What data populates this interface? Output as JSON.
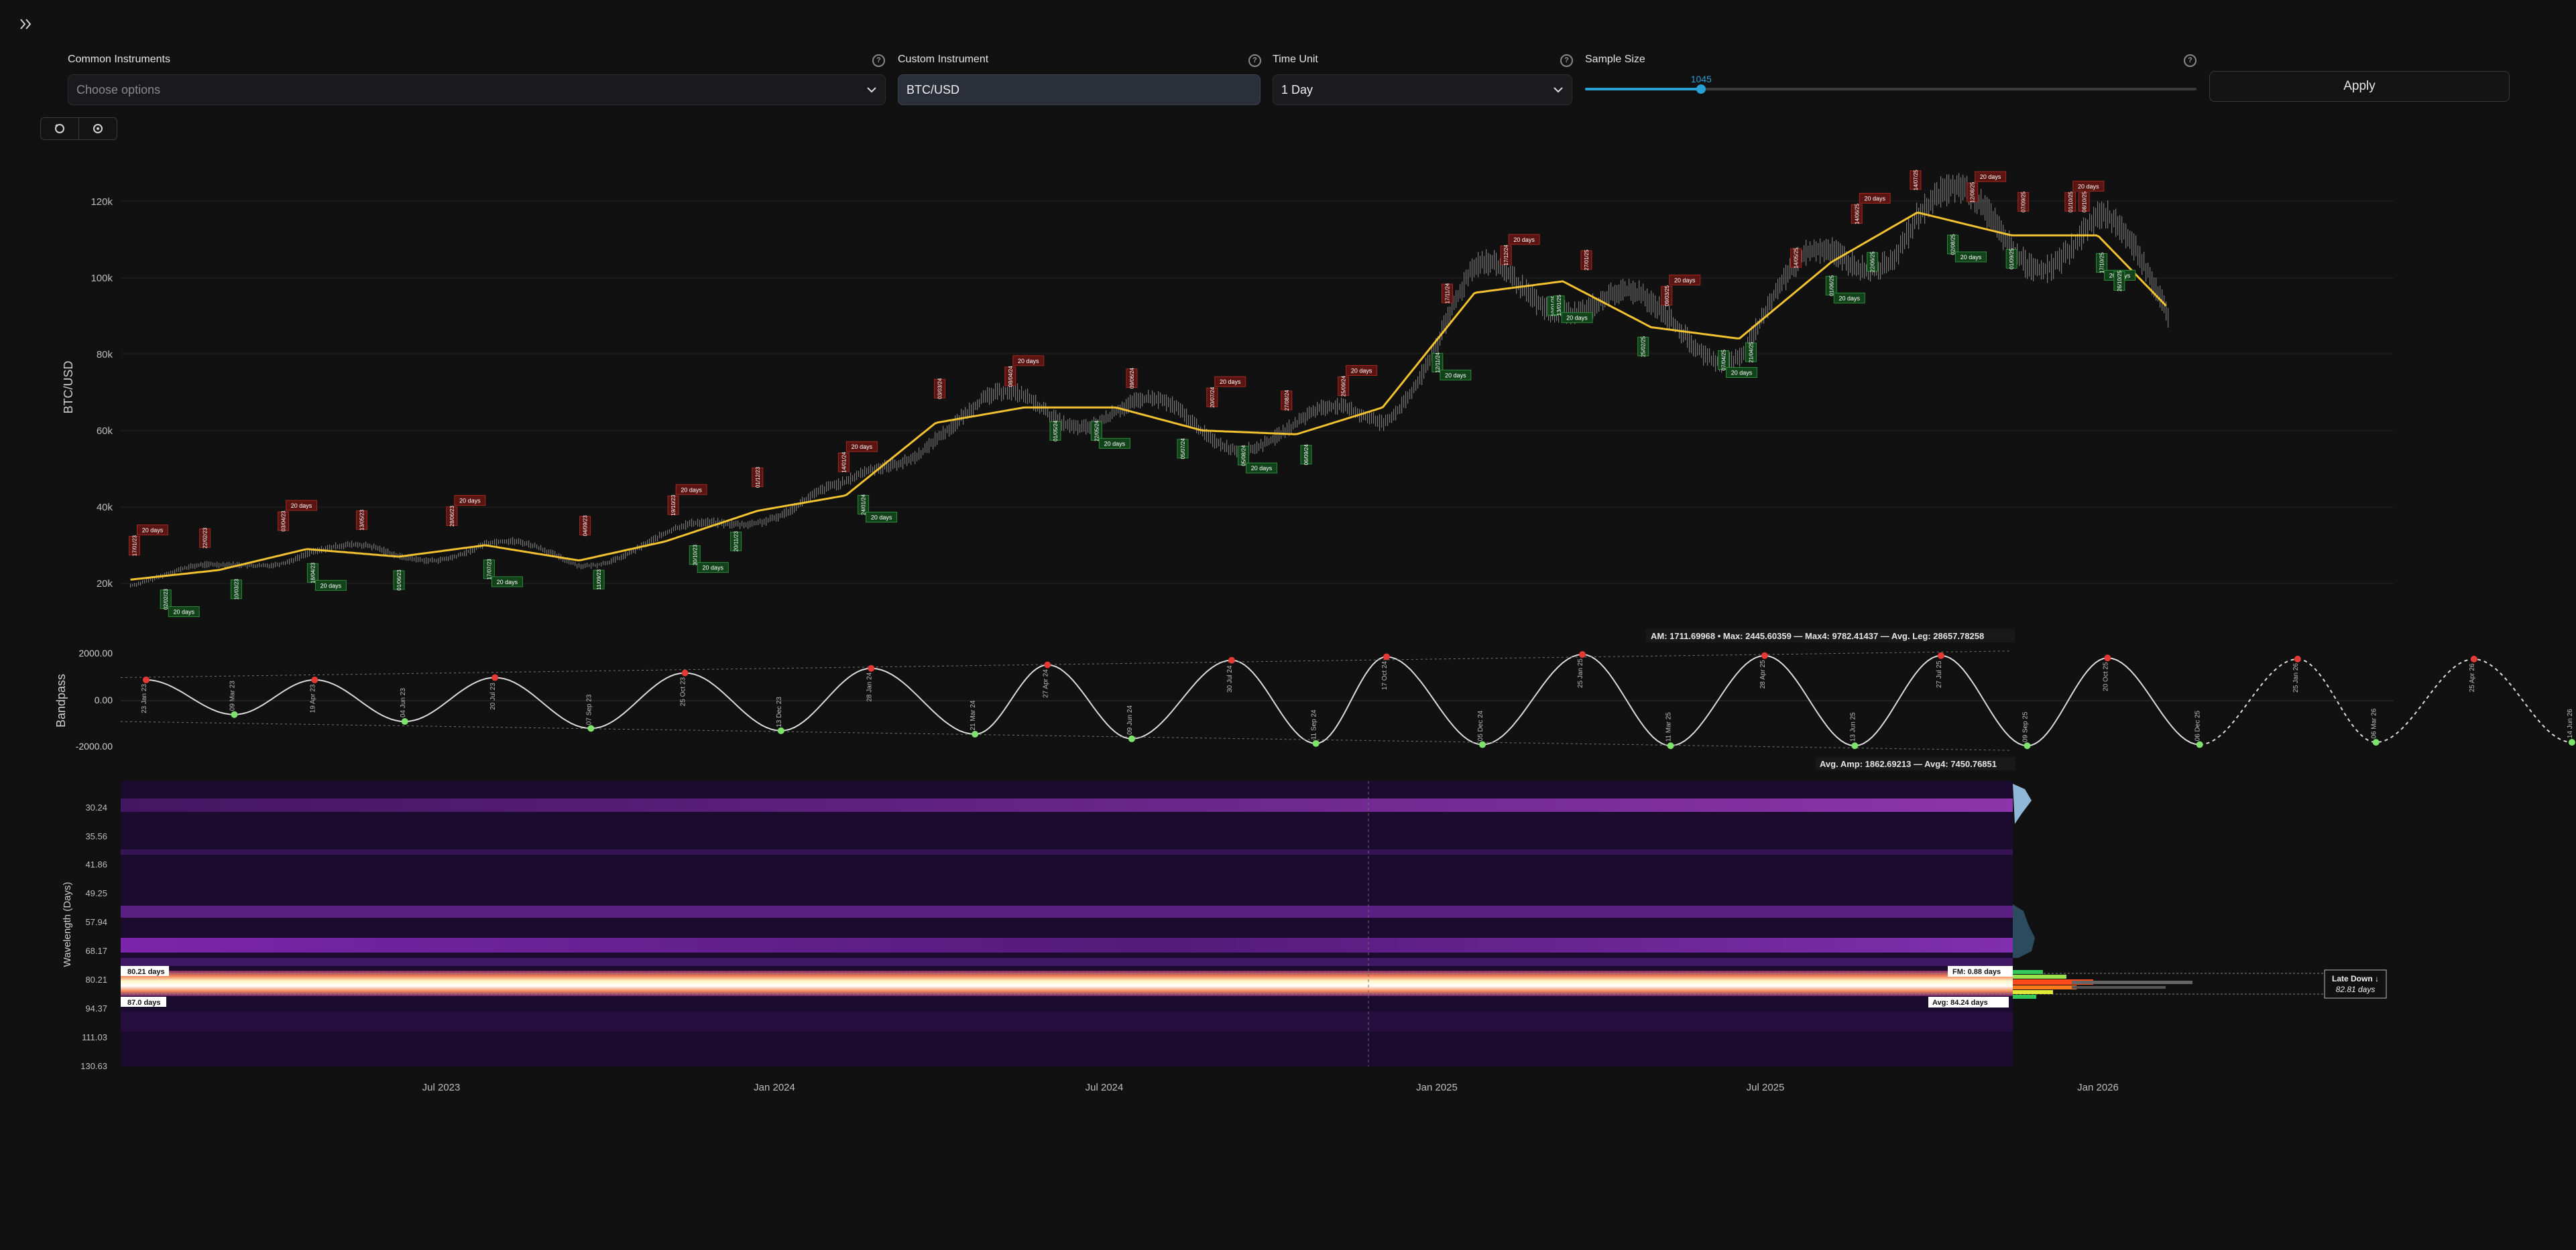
{
  "toolbar": {
    "common_label": "Common Instruments",
    "common_placeholder": "Choose options",
    "custom_label": "Custom Instrument",
    "custom_value": "BTC/USD",
    "time_label": "Time Unit",
    "time_value": "1 Day",
    "sample_label": "Sample Size",
    "sample_value": "1045",
    "sample_fraction": 0.19,
    "apply_label": "Apply",
    "help_glyph": "?"
  },
  "icons": {
    "expand": "double-chevron-right-icon",
    "refresh": "refresh-icon",
    "settings": "gear-icon"
  },
  "price_chart": {
    "ylabel": "BTC/USD",
    "yticks": [
      "120k",
      "100k",
      "80k",
      "60k",
      "40k",
      "20k"
    ],
    "cycle_label": "20 days",
    "top_markers": [
      "17/01/23",
      "22/02/23",
      "03/04/23",
      "13/05/23",
      "28/06/23",
      "04/09/23",
      "19/10/23",
      "01/12/23",
      "14/01/24",
      "03/03/24",
      "08/04/24",
      "09/06/24",
      "20/07/24",
      "27/08/24",
      "25/09/24",
      "17/11/24",
      "17/12/24",
      "27/01/25",
      "09/03/25",
      "14/05/25",
      "14/06/25",
      "14/07/25",
      "12/08/25",
      "07/09/25",
      "01/10/25",
      "08/10/25"
    ],
    "bottom_markers": [
      "02/02/23",
      "10/03/23",
      "18/04/23",
      "01/06/23",
      "17/07/23",
      "11/09/23",
      "30/10/23",
      "20/11/23",
      "24/01/24",
      "01/05/24",
      "22/05/24",
      "05/07/24",
      "05/08/24",
      "06/09/24",
      "12/11/24",
      "10/01/25",
      "13/01/25",
      "25/02/25",
      "07/04/25",
      "21/04/25",
      "01/06/25",
      "22/06/25",
      "02/08/25",
      "01/09/25",
      "17/10/25",
      "26/10/25"
    ]
  },
  "bandpass": {
    "ylabel": "Bandpass",
    "yticks": [
      "2000.00",
      "0.00",
      "-2000.00"
    ],
    "top_legend": "AM: 1711.69968  • Max: 2445.60359  — Max4: 9782.41437  — Avg. Leg: 28657.78258",
    "bottom_legend": "Avg. Amp: 1862.69213  — Avg4: 7450.76851",
    "peak_dates": [
      "23 Jan 23",
      "19 Apr 23",
      "20 Jul 23",
      "25 Oct 23",
      "28 Jan 24",
      "27 Apr 24",
      "30 Jul 24",
      "17 Oct 24",
      "25 Jan 25",
      "28 Apr 25",
      "27 Jul 25",
      "20 Oct 25",
      "25 Jan 26",
      "25 Apr 26"
    ],
    "trough_dates": [
      "09 Mar 23",
      "04 Jun 23",
      "07 Sep 23",
      "13 Dec 23",
      "21 Mar 24",
      "09 Jun 24",
      "11 Sep 24",
      "05 Dec 24",
      "11 Mar 25",
      "13 Jun 25",
      "09 Sep 25",
      "06 Dec 25",
      "06 Mar 26",
      "14 Jun 26"
    ]
  },
  "spectrogram": {
    "ylabel": "Wavelength (Days)",
    "yticks": [
      "30.24",
      "35.56",
      "41.86",
      "49.25",
      "57.94",
      "68.17",
      "80.21",
      "94.37",
      "111.03",
      "130.63"
    ],
    "marker_top": "80.21 days",
    "marker_bottom": "87.0 days",
    "fm_label": "FM: 0.88 days",
    "avg_label": "Avg: 84.24 days",
    "status_title": "Late Down ↓",
    "status_value": "82.81 days"
  },
  "xaxis": {
    "ticks": [
      "Jul 2023",
      "Jan 2024",
      "Jul 2024",
      "Jan 2025",
      "Jul 2025",
      "Jan 2026"
    ]
  },
  "colors": {
    "bg": "#111111",
    "accent": "#2a9fd6",
    "smooth_line": "#f2c230",
    "peak": "#e53935",
    "trough": "#7ee36b",
    "cycle_top": "#5a1512",
    "cycle_bottom": "#12421a"
  },
  "chart_data": [
    {
      "type": "line",
      "title": "",
      "ylabel": "BTC/USD",
      "ylim": [
        10000,
        130000
      ],
      "xlim": [
        "2023-01-10",
        "2026-03-15"
      ],
      "x": [
        "2023-01-15",
        "2023-03-01",
        "2023-04-15",
        "2023-06-01",
        "2023-07-15",
        "2023-09-01",
        "2023-10-15",
        "2023-12-01",
        "2024-01-15",
        "2024-03-01",
        "2024-04-15",
        "2024-06-01",
        "2024-07-15",
        "2024-09-01",
        "2024-10-15",
        "2024-12-01",
        "2025-01-15",
        "2025-03-01",
        "2025-04-15",
        "2025-06-01",
        "2025-07-15",
        "2025-09-01",
        "2025-10-15",
        "2025-11-20"
      ],
      "series": [
        {
          "values": [
            21000,
            23500,
            29000,
            27000,
            30000,
            26000,
            31000,
            39000,
            43000,
            62000,
            66000,
            66000,
            60000,
            59000,
            66000,
            96000,
            99000,
            87000,
            84000,
            104000,
            117000,
            111000,
            111000,
            92000
          ]
        }
      ]
    },
    {
      "type": "line",
      "title": "",
      "ylabel": "Bandpass",
      "ylim": [
        -2600,
        2600
      ],
      "x": [
        "2023-01-23",
        "2023-03-09",
        "2023-04-19",
        "2023-06-04",
        "2023-07-20",
        "2023-09-07",
        "2023-10-25",
        "2023-12-13",
        "2024-01-28",
        "2024-03-21",
        "2024-04-27",
        "2024-06-09",
        "2024-07-30",
        "2024-09-11",
        "2024-10-17",
        "2024-12-05",
        "2025-01-25",
        "2025-03-11",
        "2025-04-28",
        "2025-06-13",
        "2025-07-27",
        "2025-09-09",
        "2025-10-20",
        "2025-12-06",
        "2026-01-25",
        "2026-03-06",
        "2026-04-25",
        "2026-06-14"
      ],
      "series": [
        {
          "values": [
            900,
            -600,
            900,
            -900,
            1000,
            -1200,
            1200,
            -1300,
            1400,
            -1450,
            1550,
            -1650,
            1750,
            -1850,
            1900,
            -1900,
            2000,
            -1950,
            1950,
            -1950,
            1950,
            -1950,
            1850,
            -1900,
            1800,
            -1800,
            1800,
            -1800
          ]
        }
      ]
    },
    {
      "type": "heatmap",
      "title": "",
      "ylabel": "Wavelength (Days)",
      "yticks": [
        30.24,
        35.56,
        41.86,
        49.25,
        57.94,
        68.17,
        80.21,
        94.37,
        111.03,
        130.63
      ],
      "bands": [
        {
          "wavelength": 31.5,
          "intensity": 0.5
        },
        {
          "wavelength": 58.5,
          "intensity": 0.45
        },
        {
          "wavelength": 67,
          "intensity": 0.6
        },
        {
          "wavelength": 84.2,
          "intensity": 1.0
        }
      ]
    }
  ]
}
